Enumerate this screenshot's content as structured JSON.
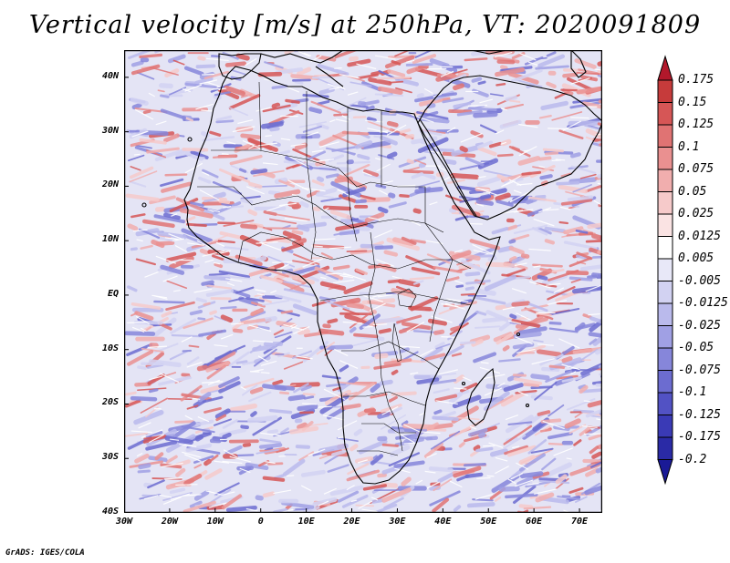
{
  "title": "Vertical velocity [m/s] at 250hPa, VT: 2020091809",
  "credit": "GrADS: IGES/COLA",
  "map": {
    "lon_range": [
      -30,
      75
    ],
    "lat_range": [
      -40,
      45
    ],
    "lat_labels": [
      "40N",
      "30N",
      "20N",
      "10N",
      "EQ",
      "10S",
      "20S",
      "30S",
      "40S"
    ],
    "lon_labels": [
      "30W",
      "20W",
      "10W",
      "0",
      "10E",
      "20E",
      "30E",
      "40E",
      "50E",
      "60E",
      "70E"
    ],
    "colors": {
      "background": "#e4e4f5",
      "upward_max": "#b2182b",
      "downward_max": "#2c2ca8",
      "neutral": "#ffffff"
    }
  },
  "colorbar": {
    "labels": [
      "0.175",
      "0.15",
      "0.125",
      "0.1",
      "0.075",
      "0.05",
      "0.025",
      "0.0125",
      "0.005",
      "-0.005",
      "-0.0125",
      "-0.025",
      "-0.05",
      "-0.075",
      "-0.1",
      "-0.125",
      "-0.175",
      "-0.2"
    ],
    "colors": [
      "#b2182b",
      "#c63b3b",
      "#d65656",
      "#e07373",
      "#ea9090",
      "#f1aeae",
      "#f6caca",
      "#fae3e3",
      "#ffffff",
      "#e8e8f8",
      "#d2d2f2",
      "#babaec",
      "#a0a0e4",
      "#8686da",
      "#6c6cd0",
      "#5252c4",
      "#3a3ab6",
      "#2a2aa6",
      "#1a1a96"
    ]
  }
}
